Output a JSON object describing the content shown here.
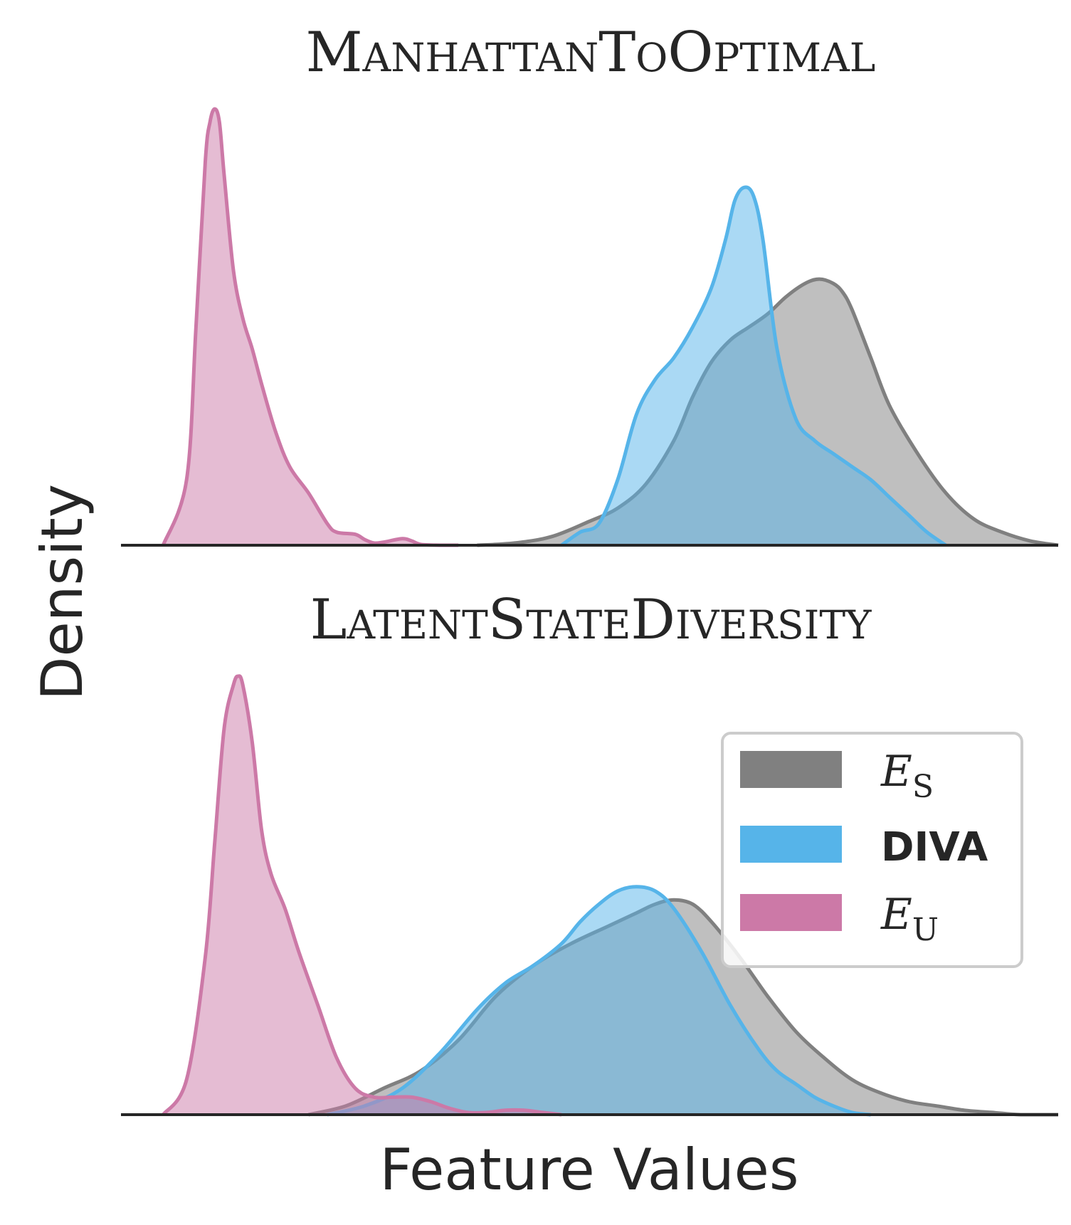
{
  "chart_data": {
    "type": "area",
    "ylabel": "Density",
    "xlabel": "Feature Values",
    "colors": {
      "E_S": "#808080",
      "DIVA": "#56b4e9",
      "E_U": "#cc79a7"
    },
    "legend": {
      "placement": "lower-panel-right",
      "entries": [
        {
          "key": "E_S",
          "label": "E",
          "sub": "S"
        },
        {
          "key": "DIVA",
          "label": "DIVA"
        },
        {
          "key": "E_U",
          "label": "E",
          "sub": "U"
        }
      ]
    },
    "panels": [
      {
        "title": "ManhattanToOptimal",
        "x_range": [
          0,
          1
        ],
        "y_range": [
          0,
          1
        ],
        "series": [
          {
            "key": "E_S",
            "x": [
              0.38,
              0.42,
              0.46,
              0.5,
              0.53,
              0.56,
              0.59,
              0.61,
              0.63,
              0.65,
              0.67,
              0.69,
              0.71,
              0.73,
              0.745,
              0.76,
              0.77,
              0.78,
              0.8,
              0.82,
              0.85,
              0.88,
              0.91,
              0.94,
              0.97,
              1.0
            ],
            "y": [
              0.0,
              0.005,
              0.02,
              0.055,
              0.085,
              0.14,
              0.24,
              0.34,
              0.42,
              0.47,
              0.5,
              0.53,
              0.57,
              0.6,
              0.61,
              0.6,
              0.58,
              0.54,
              0.43,
              0.32,
              0.21,
              0.12,
              0.06,
              0.03,
              0.01,
              0.0
            ]
          },
          {
            "key": "DIVA",
            "x": [
              0.47,
              0.49,
              0.51,
              0.53,
              0.55,
              0.57,
              0.59,
              0.61,
              0.63,
              0.645,
              0.655,
              0.665,
              0.675,
              0.685,
              0.7,
              0.72,
              0.74,
              0.76,
              0.78,
              0.8,
              0.82,
              0.84,
              0.86,
              0.88
            ],
            "y": [
              0.0,
              0.03,
              0.05,
              0.15,
              0.3,
              0.38,
              0.43,
              0.5,
              0.59,
              0.7,
              0.79,
              0.82,
              0.8,
              0.7,
              0.45,
              0.29,
              0.24,
              0.21,
              0.18,
              0.15,
              0.11,
              0.07,
              0.03,
              0.0
            ]
          },
          {
            "key": "E_U",
            "x": [
              0.045,
              0.07,
              0.08,
              0.09,
              0.095,
              0.1,
              0.105,
              0.11,
              0.12,
              0.13,
              0.14,
              0.15,
              0.165,
              0.18,
              0.2,
              0.22,
              0.23,
              0.25,
              0.26,
              0.27,
              0.28,
              0.3,
              0.31,
              0.32,
              0.34,
              0.36
            ],
            "y": [
              0.0,
              0.15,
              0.5,
              0.88,
              0.97,
              1.0,
              0.97,
              0.85,
              0.63,
              0.52,
              0.45,
              0.37,
              0.26,
              0.18,
              0.12,
              0.05,
              0.03,
              0.025,
              0.013,
              0.005,
              0.007,
              0.015,
              0.01,
              0.002,
              0.0,
              0.0
            ]
          }
        ]
      },
      {
        "title": "LatentStateDiversity",
        "x_range": [
          0,
          1
        ],
        "y_range": [
          0,
          1
        ],
        "series": [
          {
            "key": "E_S",
            "x": [
              0.2,
              0.24,
              0.28,
              0.32,
              0.36,
              0.4,
              0.44,
              0.48,
              0.52,
              0.55,
              0.57,
              0.59,
              0.61,
              0.63,
              0.66,
              0.69,
              0.72,
              0.75,
              0.78,
              0.81,
              0.84,
              0.87,
              0.9,
              0.93,
              0.96,
              1.0
            ],
            "y": [
              0.0,
              0.02,
              0.06,
              0.1,
              0.17,
              0.27,
              0.34,
              0.39,
              0.43,
              0.46,
              0.48,
              0.49,
              0.48,
              0.44,
              0.36,
              0.27,
              0.19,
              0.13,
              0.08,
              0.05,
              0.03,
              0.02,
              0.01,
              0.005,
              0.0,
              0.0
            ]
          },
          {
            "key": "DIVA",
            "x": [
              0.22,
              0.26,
              0.3,
              0.34,
              0.38,
              0.41,
              0.44,
              0.47,
              0.49,
              0.51,
              0.53,
              0.55,
              0.57,
              0.59,
              0.62,
              0.65,
              0.68,
              0.7,
              0.72,
              0.74,
              0.76,
              0.78,
              0.8
            ],
            "y": [
              0.0,
              0.02,
              0.06,
              0.14,
              0.24,
              0.3,
              0.34,
              0.39,
              0.44,
              0.48,
              0.51,
              0.52,
              0.51,
              0.47,
              0.37,
              0.25,
              0.15,
              0.1,
              0.07,
              0.04,
              0.02,
              0.005,
              0.0
            ]
          },
          {
            "key": "E_U",
            "x": [
              0.045,
              0.07,
              0.09,
              0.1,
              0.11,
              0.12,
              0.125,
              0.13,
              0.14,
              0.15,
              0.16,
              0.175,
              0.19,
              0.21,
              0.23,
              0.25,
              0.27,
              0.29,
              0.31,
              0.33,
              0.35,
              0.37,
              0.39,
              0.41,
              0.43,
              0.45,
              0.47
            ],
            "y": [
              0.0,
              0.08,
              0.36,
              0.62,
              0.88,
              0.98,
              1.0,
              0.98,
              0.85,
              0.65,
              0.55,
              0.47,
              0.37,
              0.25,
              0.13,
              0.06,
              0.04,
              0.04,
              0.04,
              0.03,
              0.015,
              0.005,
              0.005,
              0.01,
              0.01,
              0.005,
              0.0
            ]
          }
        ]
      }
    ]
  }
}
